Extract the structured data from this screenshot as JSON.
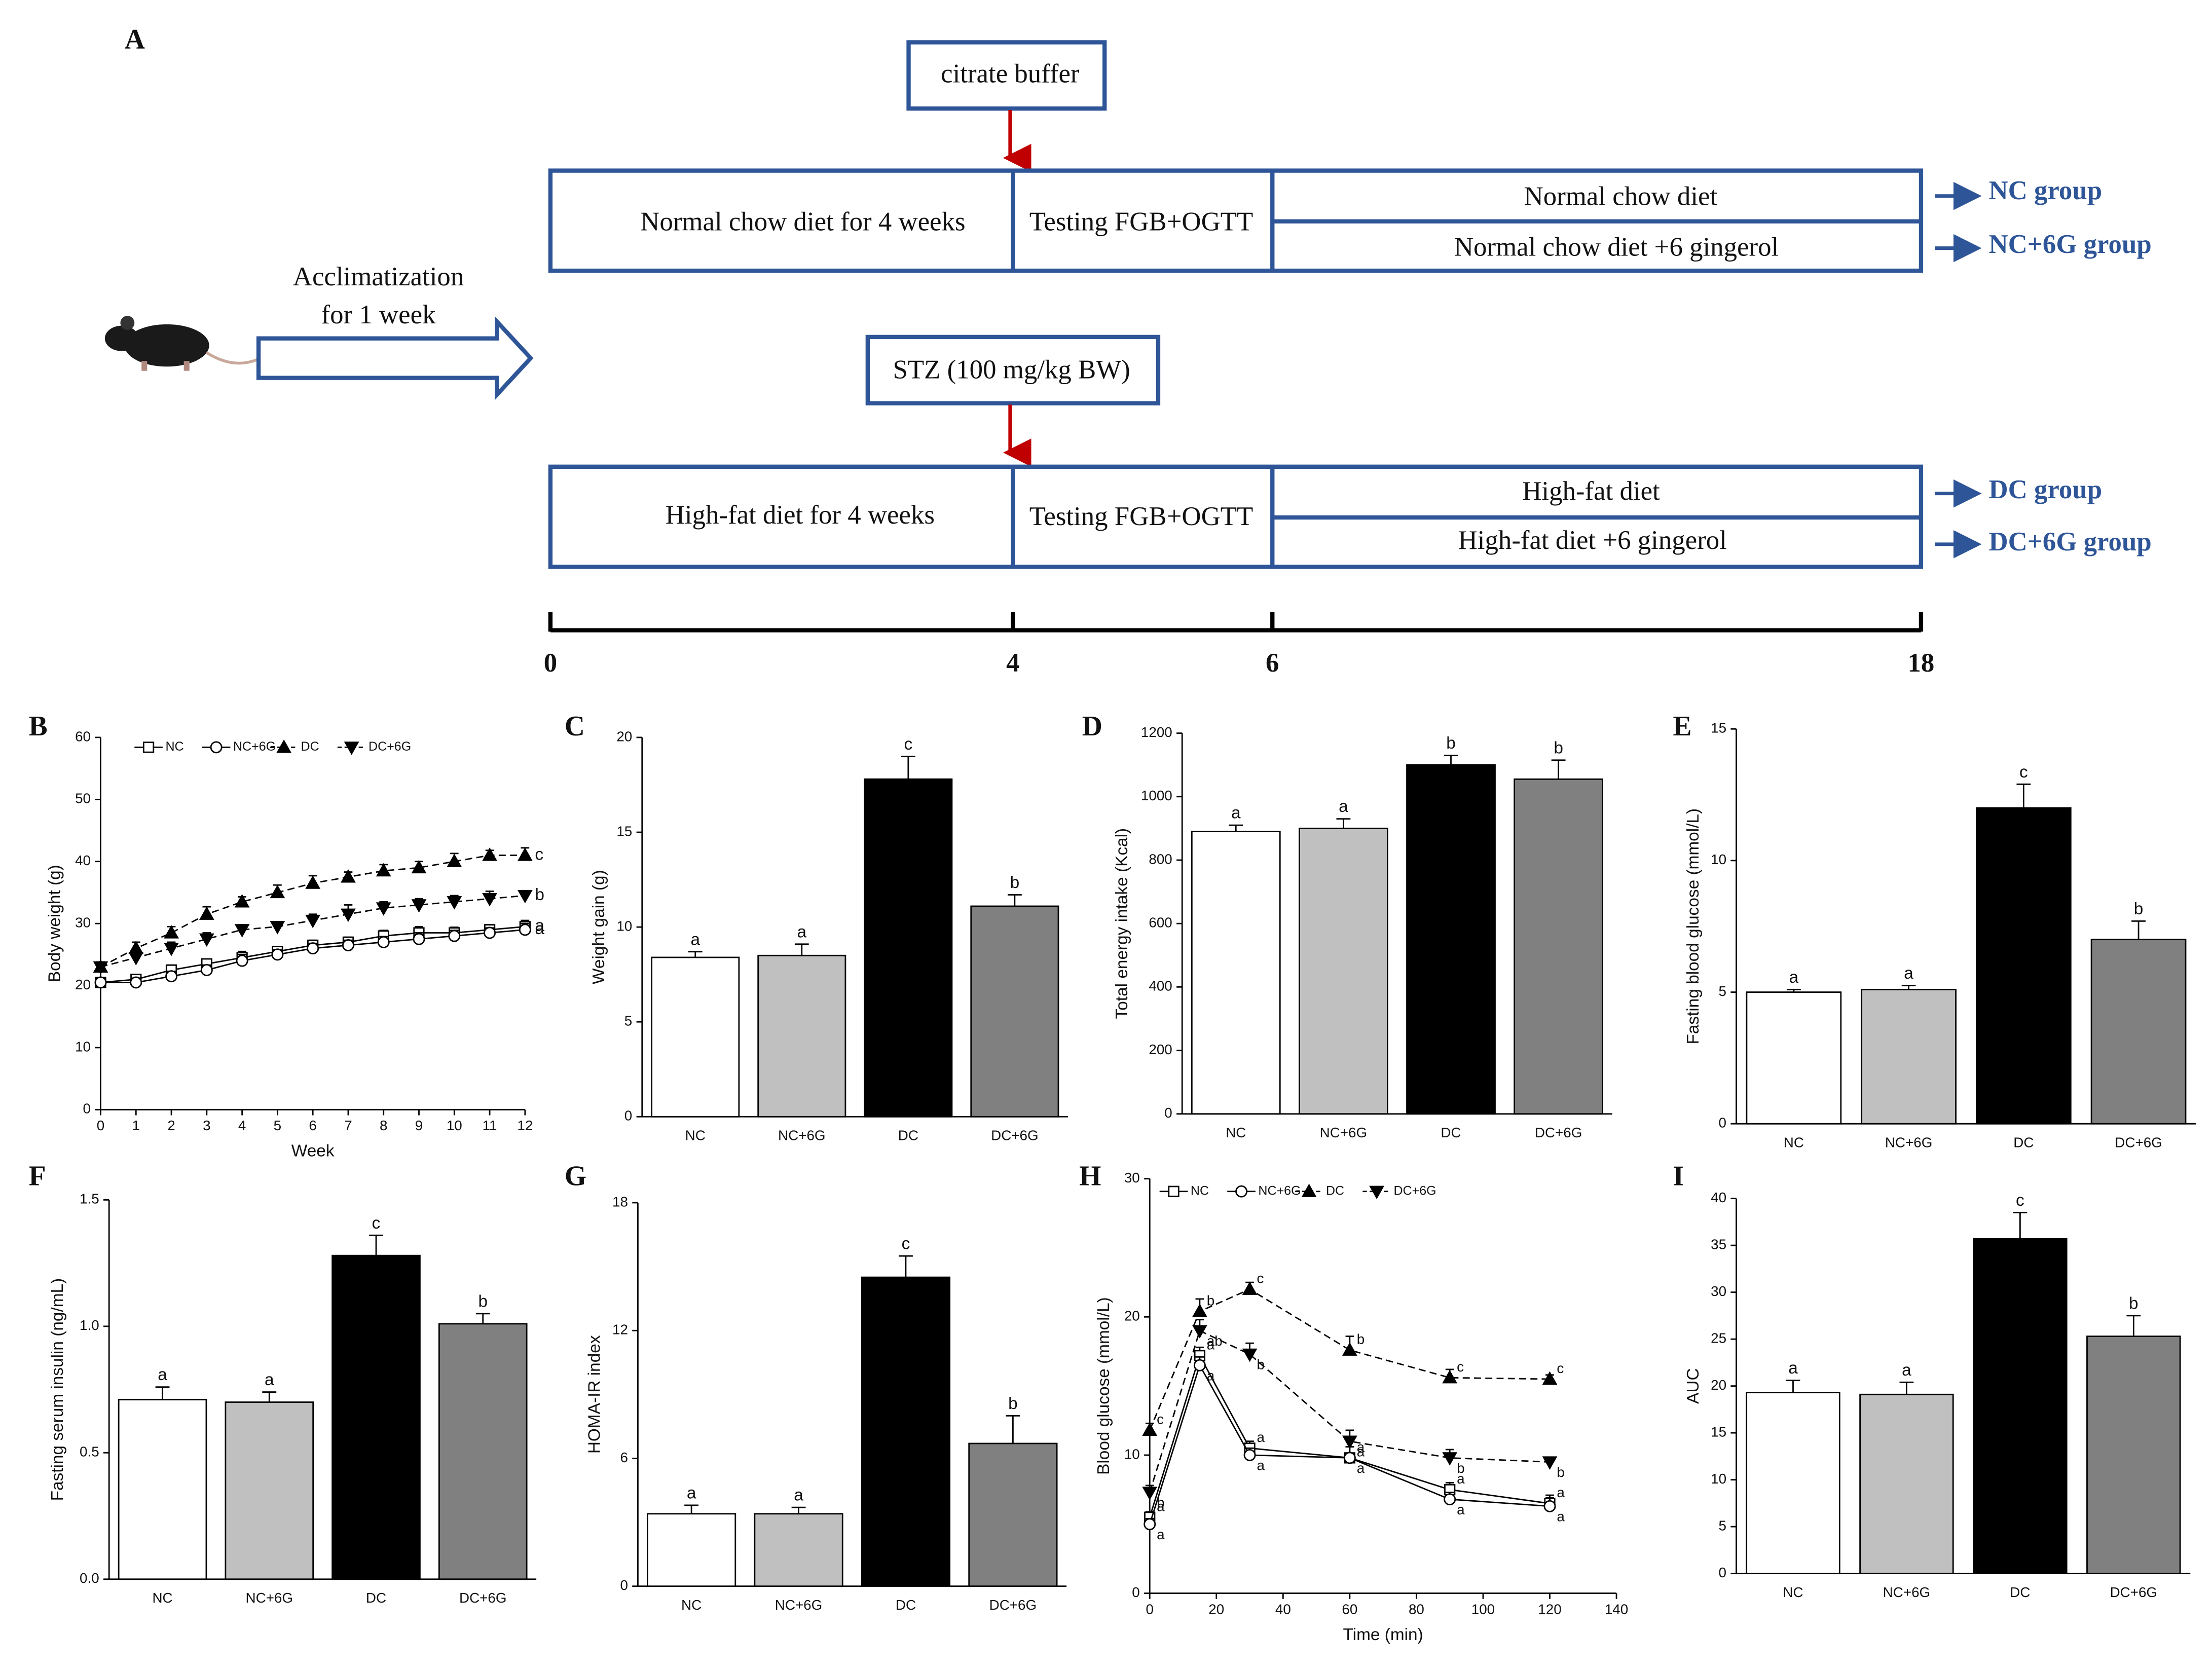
{
  "diagram": {
    "panel_label": "A",
    "acclimatization": [
      "Acclimatization",
      "for 1 week"
    ],
    "top": {
      "input": "citrate buffer",
      "stage1": "Normal chow diet for 4 weeks",
      "stage2": "Testing FGB+OGTT",
      "branches": [
        "Normal chow diet",
        "Normal chow diet +6 gingerol"
      ],
      "groups": [
        "NC group",
        "NC+6G group"
      ]
    },
    "bottom": {
      "input": "STZ (100 mg/kg BW)",
      "stage1": "High-fat diet for 4 weeks",
      "stage2": "Testing FGB+OGTT",
      "branches": [
        "High-fat diet",
        "High-fat diet +6 gingerol"
      ],
      "groups": [
        "DC group",
        "DC+6G group"
      ]
    },
    "timeline": [
      0,
      4,
      6,
      18
    ]
  },
  "chart_data": [
    {
      "type": "line",
      "label": "B",
      "xlabel": "Week",
      "ylabel": "Body weight (g)",
      "x": [
        0,
        1,
        2,
        3,
        4,
        5,
        6,
        7,
        8,
        9,
        10,
        11,
        12
      ],
      "xlim": [
        0,
        12
      ],
      "xticks": [
        0,
        1,
        2,
        3,
        4,
        5,
        6,
        7,
        8,
        9,
        10,
        11,
        12
      ],
      "ylim": [
        0,
        60
      ],
      "yticks": [
        0,
        10,
        20,
        30,
        40,
        50,
        60
      ],
      "series": [
        {
          "name": "NC",
          "color": "#000000",
          "marker": "square",
          "dashed": false,
          "values": [
            20.5,
            21,
            22.5,
            23.5,
            24.5,
            25.5,
            26.5,
            27,
            28,
            28.5,
            28.5,
            29,
            29.5
          ],
          "errors": [
            0.6,
            0.7,
            0.8,
            0.8,
            1,
            0.8,
            0.8,
            0.8,
            0.9,
            1,
            0.9,
            0.8,
            1
          ],
          "end_label": "a"
        },
        {
          "name": "NC+6G",
          "color": "#000000",
          "marker": "circle",
          "dashed": false,
          "values": [
            20.5,
            20.5,
            21.5,
            22.5,
            24,
            25,
            26,
            26.5,
            27,
            27.5,
            28,
            28.5,
            29
          ],
          "errors": [
            0.6,
            0.7,
            0.8,
            0.8,
            1,
            0.8,
            0.8,
            0.8,
            0.9,
            1,
            0.9,
            0.8,
            1
          ],
          "end_label": "a"
        },
        {
          "name": "DC",
          "color": "#000000",
          "marker": "triangle",
          "dashed": true,
          "values": [
            23,
            26,
            28.5,
            31.5,
            33.5,
            35,
            36.5,
            37.5,
            38.5,
            39,
            40,
            41,
            41
          ],
          "errors": [
            0.8,
            1,
            1,
            1.2,
            0.8,
            1.2,
            1.2,
            0.8,
            1,
            1,
            1.3,
            0.8,
            1.2
          ],
          "end_label": "c"
        },
        {
          "name": "DC+6G",
          "color": "#000000",
          "marker": "triangle-down",
          "dashed": true,
          "values": [
            23,
            24.5,
            26,
            27.5,
            29,
            29.5,
            30.5,
            31.5,
            32.5,
            33,
            33.5,
            34,
            34.5
          ],
          "errors": [
            0.8,
            1,
            1,
            1,
            0.8,
            0.8,
            1,
            1.5,
            1,
            1,
            1,
            1.2,
            0.8
          ],
          "end_label": "b"
        }
      ]
    },
    {
      "type": "bar",
      "label": "C",
      "ylabel": "Weight gain (g)",
      "categories": [
        "NC",
        "NC+6G",
        "DC",
        "DC+6G"
      ],
      "values": [
        8.4,
        8.5,
        17.8,
        11.1
      ],
      "errors": [
        0.3,
        0.6,
        1.2,
        0.6
      ],
      "letters": [
        "a",
        "a",
        "c",
        "b"
      ],
      "colors": [
        "#ffffff",
        "#c0c0c0",
        "#000000",
        "#808080"
      ],
      "ylim": [
        0,
        20
      ],
      "yticks": [
        0,
        5,
        10,
        15,
        20
      ]
    },
    {
      "type": "bar",
      "label": "D",
      "ylabel": "Total energy intake (Kcal)",
      "categories": [
        "NC",
        "NC+6G",
        "DC",
        "DC+6G"
      ],
      "values": [
        890,
        900,
        1100,
        1055
      ],
      "errors": [
        20,
        30,
        30,
        60
      ],
      "letters": [
        "a",
        "a",
        "b",
        "b"
      ],
      "colors": [
        "#ffffff",
        "#c0c0c0",
        "#000000",
        "#808080"
      ],
      "ylim": [
        0,
        1200
      ],
      "yticks": [
        0,
        200,
        400,
        600,
        800,
        1000,
        1200
      ]
    },
    {
      "type": "bar",
      "label": "E",
      "ylabel": "Fasting blood glucose (mmol/L)",
      "categories": [
        "NC",
        "NC+6G",
        "DC",
        "DC+6G"
      ],
      "values": [
        5.0,
        5.1,
        12.0,
        7.0
      ],
      "errors": [
        0.1,
        0.15,
        0.9,
        0.7
      ],
      "letters": [
        "a",
        "a",
        "c",
        "b"
      ],
      "colors": [
        "#ffffff",
        "#c0c0c0",
        "#000000",
        "#808080"
      ],
      "ylim": [
        0,
        15
      ],
      "yticks": [
        0,
        5,
        10,
        15
      ]
    },
    {
      "type": "bar",
      "label": "F",
      "ylabel": "Fasting serum insulin (ng/mL)",
      "categories": [
        "NC",
        "NC+6G",
        "DC",
        "DC+6G"
      ],
      "values": [
        0.71,
        0.7,
        1.28,
        1.01
      ],
      "errors": [
        0.05,
        0.04,
        0.08,
        0.04
      ],
      "letters": [
        "a",
        "a",
        "c",
        "b"
      ],
      "colors": [
        "#ffffff",
        "#c0c0c0",
        "#000000",
        "#808080"
      ],
      "ylim": [
        0,
        1.5
      ],
      "yticks": [
        {
          "value": 0,
          "label": "0.0"
        },
        0.5,
        {
          "value": 1,
          "label": "1.0"
        },
        1.5
      ]
    },
    {
      "type": "bar",
      "label": "G",
      "ylabel": "HOMA-IR index",
      "categories": [
        "NC",
        "NC+6G",
        "DC",
        "DC+6G"
      ],
      "values": [
        3.4,
        3.4,
        14.5,
        6.7
      ],
      "errors": [
        0.4,
        0.3,
        1.0,
        1.3
      ],
      "letters": [
        "a",
        "a",
        "c",
        "b"
      ],
      "colors": [
        "#ffffff",
        "#c0c0c0",
        "#000000",
        "#808080"
      ],
      "ylim": [
        0,
        18
      ],
      "yticks": [
        0,
        6,
        12,
        18
      ]
    },
    {
      "type": "line",
      "label": "H",
      "xlabel": "Time (min)",
      "ylabel": "Blood glucose (mmol/L)",
      "x": [
        0,
        15,
        30,
        60,
        90,
        120
      ],
      "xlim": [
        0,
        140
      ],
      "xticks": [
        0,
        20,
        40,
        60,
        80,
        100,
        120,
        140
      ],
      "ylim": [
        0,
        30
      ],
      "yticks": [
        0,
        10,
        20,
        30
      ],
      "series": [
        {
          "name": "NC",
          "color": "#000000",
          "marker": "square",
          "dashed": false,
          "values": [
            5.5,
            17.2,
            10.5,
            9.8,
            7.5,
            6.5
          ],
          "errors": [
            0.4,
            0.6,
            0.5,
            0.8,
            0.5,
            0.6
          ],
          "letters": [
            "a",
            "a",
            "a",
            "a",
            "a",
            "a"
          ]
        },
        {
          "name": "NC+6G",
          "color": "#000000",
          "marker": "circle",
          "dashed": false,
          "values": [
            5,
            16.5,
            10,
            9.8,
            6.8,
            6.3
          ],
          "errors": [
            0.4,
            0.6,
            0.5,
            0.8,
            0.5,
            0.6
          ],
          "letters": [
            "a",
            "a",
            "a",
            "a",
            "a",
            "a"
          ]
        },
        {
          "name": "DC",
          "color": "#000000",
          "marker": "triangle",
          "dashed": true,
          "values": [
            11.8,
            20.4,
            22,
            17.6,
            15.6,
            15.5
          ],
          "errors": [
            0.5,
            0.9,
            0.5,
            1,
            0.6,
            0.3
          ],
          "letters": [
            "c",
            "b",
            "c",
            "b",
            "c",
            "c"
          ]
        },
        {
          "name": "DC+6G",
          "color": "#000000",
          "marker": "triangle-down",
          "dashed": true,
          "values": [
            7.3,
            19,
            17.3,
            11,
            9.8,
            9.5
          ],
          "errors": [
            0.5,
            0.8,
            0.8,
            0.8,
            0.6,
            0.3
          ],
          "letters": [
            "b",
            "ab",
            "b",
            "a",
            "b",
            "b"
          ]
        }
      ]
    },
    {
      "type": "bar",
      "label": "I",
      "ylabel": "AUC",
      "categories": [
        "NC",
        "NC+6G",
        "DC",
        "DC+6G"
      ],
      "values": [
        19.3,
        19.1,
        35.7,
        25.3
      ],
      "errors": [
        1.3,
        1.3,
        2.8,
        2.2
      ],
      "letters": [
        "a",
        "a",
        "c",
        "b"
      ],
      "colors": [
        "#ffffff",
        "#c0c0c0",
        "#000000",
        "#808080"
      ],
      "ylim": [
        0,
        40
      ],
      "yticks": [
        0,
        5,
        10,
        15,
        20,
        25,
        30,
        35,
        40
      ]
    }
  ]
}
